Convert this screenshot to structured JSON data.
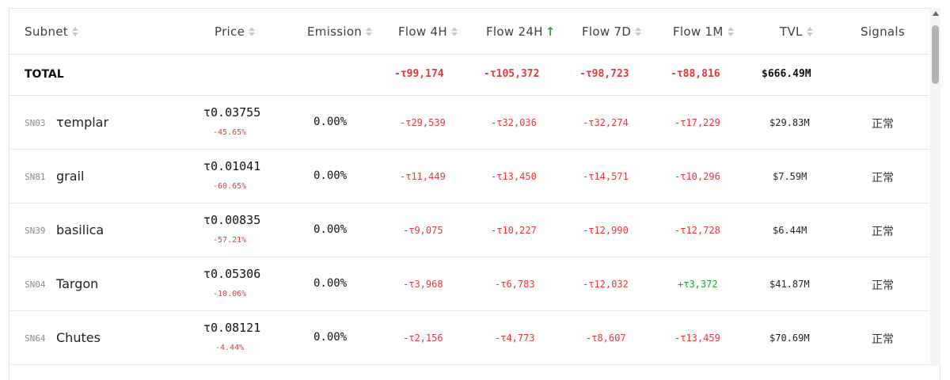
{
  "headers": {
    "subnet": "Subnet",
    "price": "Price",
    "emission": "Emission",
    "flow_4h": "Flow 4H",
    "flow_24h": "Flow 24H",
    "flow_24h_sort_icon": "arrow-up-icon",
    "flow_7d": "Flow 7D",
    "flow_1m": "Flow 1M",
    "tvl": "TVL",
    "signals": "Signals"
  },
  "total": {
    "label": "TOTAL",
    "flow_4h": "-τ99,174",
    "flow_24h": "-τ105,372",
    "flow_7d": "-τ98,723",
    "flow_1m": "-τ88,816",
    "tvl": "$666.49M"
  },
  "rows": [
    {
      "sn": "SN03",
      "name": "τemplar",
      "price": "τ0.03755",
      "change": "-45.65%",
      "emission": "0.00%",
      "flow_4h": "-τ29,539",
      "flow_24h": "-τ32,036",
      "flow_7d": "-τ32,274",
      "flow_1m": "-τ17,229",
      "tvl": "$29.83M",
      "signal": "正常"
    },
    {
      "sn": "SN81",
      "name": "grail",
      "price": "τ0.01041",
      "change": "-60.65%",
      "emission": "0.00%",
      "flow_4h": "-τ11,449",
      "flow_24h": "-τ13,450",
      "flow_7d": "-τ14,571",
      "flow_1m": "-τ10,296",
      "tvl": "$7.59M",
      "signal": "正常"
    },
    {
      "sn": "SN39",
      "name": "basilica",
      "price": "τ0.00835",
      "change": "-57.21%",
      "emission": "0.00%",
      "flow_4h": "-τ9,075",
      "flow_24h": "-τ10,227",
      "flow_7d": "-τ12,990",
      "flow_1m": "-τ12,728",
      "tvl": "$6.44M",
      "signal": "正常"
    },
    {
      "sn": "SN04",
      "name": "Targon",
      "price": "τ0.05306",
      "change": "-10.06%",
      "emission": "0.00%",
      "flow_4h": "-τ3,968",
      "flow_24h": "-τ6,783",
      "flow_7d": "-τ12,032",
      "flow_1m": "+τ3,372",
      "tvl": "$41.87M",
      "signal": "正常"
    },
    {
      "sn": "SN64",
      "name": "Chutes",
      "price": "τ0.08121",
      "change": "-4.44%",
      "emission": "0.00%",
      "flow_4h": "-τ2,156",
      "flow_24h": "-τ4,773",
      "flow_7d": "-τ8,607",
      "flow_1m": "-τ13,459",
      "tvl": "$70.69M",
      "signal": "正常"
    }
  ],
  "colors": {
    "negative": "#e03a3a",
    "positive": "#1f9e3c",
    "sort_active": "#22a845"
  }
}
